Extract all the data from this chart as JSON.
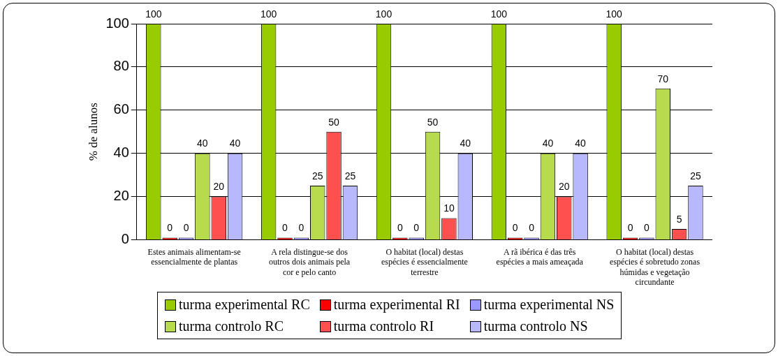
{
  "chart_data": {
    "type": "bar",
    "ylabel": "% de alunos",
    "categories": [
      "Estes animais alimentam-se essencialmente de plantas",
      "A rela distingue-se dos outros dois animais pela cor e pelo canto",
      "O habitat (local) destas espécies é essencialmente terrestre",
      "A rã ibérica é das três espécies a mais ameaçada",
      "O habitat (local) destas espécies é sobretudo zonas húmidas e vegetação circundante"
    ],
    "series": [
      {
        "name": "turma experimental RC",
        "color": "#99cc00",
        "values": [
          100,
          100,
          100,
          100,
          100
        ]
      },
      {
        "name": "turma experimental RI",
        "color": "#ff0000",
        "values": [
          0,
          0,
          0,
          0,
          0
        ]
      },
      {
        "name": "turma experimental NS",
        "color": "#9999ff",
        "values": [
          0,
          0,
          0,
          0,
          0
        ]
      },
      {
        "name": "turma controlo RC",
        "color": "#b8db4d",
        "values": [
          40,
          25,
          50,
          40,
          70
        ]
      },
      {
        "name": "turma controlo RI",
        "color": "#ff5050",
        "values": [
          20,
          50,
          10,
          20,
          5
        ]
      },
      {
        "name": "turma controlo NS",
        "color": "#b8b8ff",
        "values": [
          40,
          25,
          40,
          40,
          25
        ]
      }
    ],
    "ylim": [
      0,
      100
    ],
    "yticks": [
      0,
      20,
      40,
      60,
      80,
      100
    ],
    "grid": "y",
    "data_labels": true,
    "legend": "bottom"
  }
}
